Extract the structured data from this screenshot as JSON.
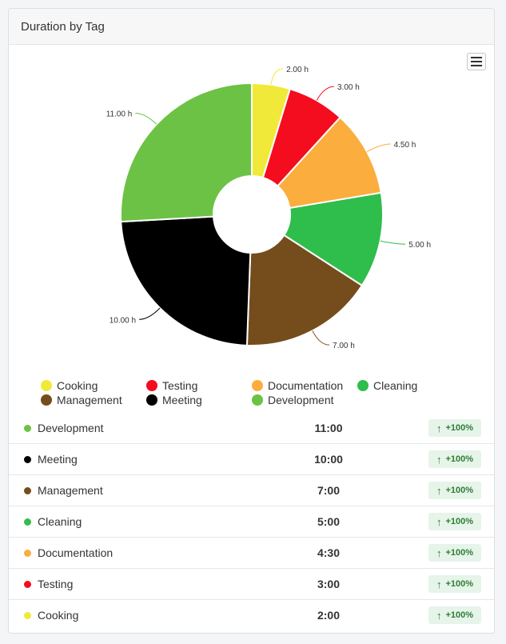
{
  "title": "Duration by Tag",
  "chart_data": {
    "type": "pie",
    "variant": "donut",
    "slices": [
      {
        "name": "Cooking",
        "value": 2.0,
        "label": "2.00 h",
        "color": "#f0e93a"
      },
      {
        "name": "Testing",
        "value": 3.0,
        "label": "3.00 h",
        "color": "#f40d1e"
      },
      {
        "name": "Documentation",
        "value": 4.5,
        "label": "4.50 h",
        "color": "#fbad3d"
      },
      {
        "name": "Cleaning",
        "value": 5.0,
        "label": "5.00 h",
        "color": "#2fbd4b"
      },
      {
        "name": "Management",
        "value": 7.0,
        "label": "7.00 h",
        "color": "#754c1c"
      },
      {
        "name": "Meeting",
        "value": 10.0,
        "label": "10.00 h",
        "color": "#000000"
      },
      {
        "name": "Development",
        "value": 11.0,
        "label": "11.00 h",
        "color": "#6cc244"
      }
    ]
  },
  "menu_icon": "hamburger-icon",
  "table": {
    "rows": [
      {
        "label": "Development",
        "value": "11:00",
        "change": "+100%",
        "color": "#6cc244"
      },
      {
        "label": "Meeting",
        "value": "10:00",
        "change": "+100%",
        "color": "#000000"
      },
      {
        "label": "Management",
        "value": "7:00",
        "change": "+100%",
        "color": "#754c1c"
      },
      {
        "label": "Cleaning",
        "value": "5:00",
        "change": "+100%",
        "color": "#2fbd4b"
      },
      {
        "label": "Documentation",
        "value": "4:30",
        "change": "+100%",
        "color": "#fbad3d"
      },
      {
        "label": "Testing",
        "value": "3:00",
        "change": "+100%",
        "color": "#f40d1e"
      },
      {
        "label": "Cooking",
        "value": "2:00",
        "change": "+100%",
        "color": "#f0e93a"
      }
    ]
  }
}
